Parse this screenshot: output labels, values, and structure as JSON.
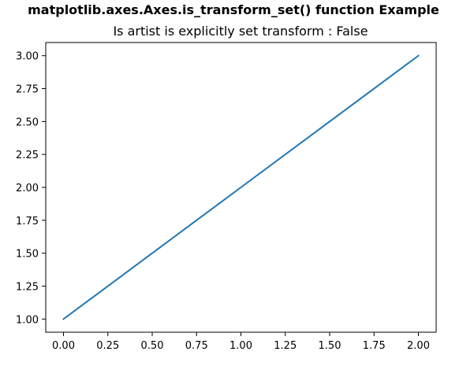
{
  "chart_data": {
    "type": "line",
    "suptitle": "matplotlib.axes.Axes.is_transform_set() function Example",
    "title": "Is artist is explicitly set transform : False",
    "xlabel": "",
    "ylabel": "",
    "xlim": [
      -0.1,
      2.1
    ],
    "ylim": [
      0.9,
      3.1
    ],
    "grid": false,
    "xticks": [
      0.0,
      0.25,
      0.5,
      0.75,
      1.0,
      1.25,
      1.5,
      1.75,
      2.0
    ],
    "xtick_labels": [
      "0.00",
      "0.25",
      "0.50",
      "0.75",
      "1.00",
      "1.25",
      "1.50",
      "1.75",
      "2.00"
    ],
    "yticks": [
      1.0,
      1.25,
      1.5,
      1.75,
      2.0,
      2.25,
      2.5,
      2.75,
      3.0
    ],
    "ytick_labels": [
      "1.00",
      "1.25",
      "1.50",
      "1.75",
      "2.00",
      "2.25",
      "2.50",
      "2.75",
      "3.00"
    ],
    "series": [
      {
        "color": "#1f77b4",
        "x": [
          0,
          1,
          2
        ],
        "y": [
          1,
          2,
          3
        ]
      }
    ]
  }
}
